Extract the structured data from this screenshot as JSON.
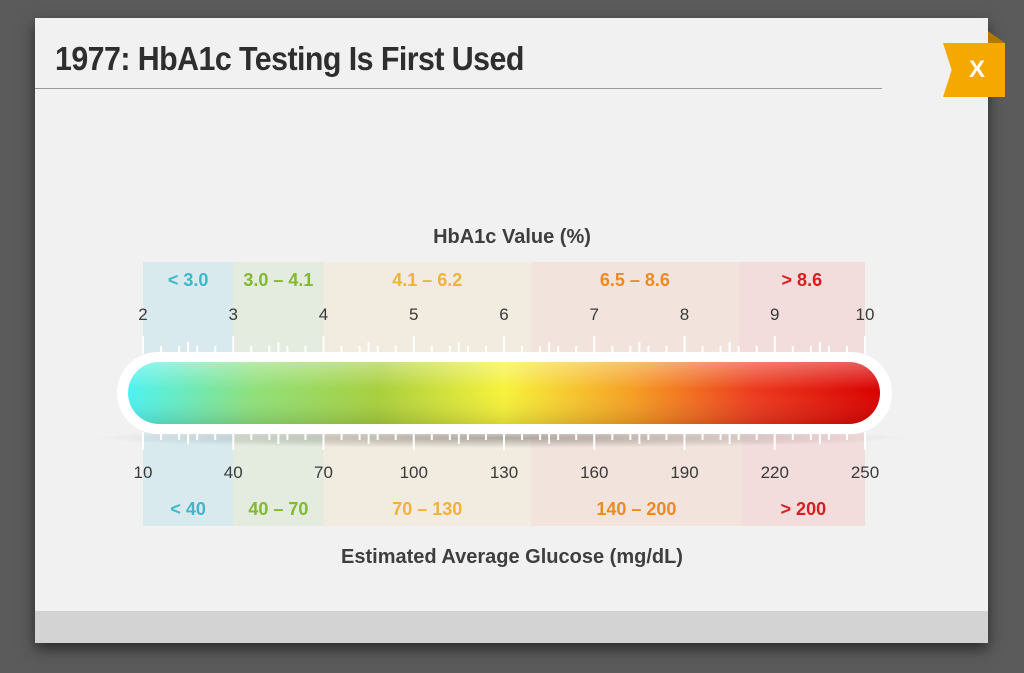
{
  "dialog": {
    "title": "1977: HbA1c Testing Is First Used",
    "close_label": "X"
  },
  "colors": {
    "accent": "#f5a800",
    "bar_gradient": [
      "#4df2f2",
      "#8fe07a",
      "#a8cf3c",
      "#f7f23a",
      "#f6a023",
      "#ec3a1d",
      "#d90000"
    ]
  },
  "chart_data": {
    "type": "bar",
    "top_axis": {
      "title": "HbA1c Value (%)",
      "range": [
        2,
        10
      ],
      "ticks": [
        "2",
        "3",
        "4",
        "5",
        "6",
        "7",
        "8",
        "9",
        "10"
      ],
      "ranges": [
        {
          "label": "< 3.0",
          "from": 2,
          "to": 3,
          "color": "#3fb7c6",
          "bg": "#d9eaee"
        },
        {
          "label": "3.0 – 4.1",
          "from": 3,
          "to": 4,
          "color": "#82b833",
          "bg": "#e3ecdf"
        },
        {
          "label": "4.1 – 6.2",
          "from": 4,
          "to": 6.3,
          "color": "#f0b23a",
          "bg": "#f2ebdf"
        },
        {
          "label": "6.5 – 8.6",
          "from": 6.3,
          "to": 8.6,
          "color": "#ee8a1e",
          "bg": "#f2e4dc"
        },
        {
          "label": "> 8.6",
          "from": 8.6,
          "to": 10,
          "color": "#d81f1f",
          "bg": "#f2dcdc"
        }
      ]
    },
    "bottom_axis": {
      "title": "Estimated Average Glucose (mg/dL)",
      "range": [
        10,
        250
      ],
      "ticks": [
        "10",
        "40",
        "70",
        "100",
        "130",
        "160",
        "190",
        "220",
        "250"
      ],
      "ranges": [
        {
          "label": "< 40",
          "from": 10,
          "to": 40,
          "color": "#3fb7c6",
          "bg": "#d9eaee"
        },
        {
          "label": "40 – 70",
          "from": 40,
          "to": 70,
          "color": "#82b833",
          "bg": "#e3ecdf"
        },
        {
          "label": "70 – 130",
          "from": 70,
          "to": 139,
          "color": "#f0b23a",
          "bg": "#f2ebdf"
        },
        {
          "label": "140 – 200",
          "from": 139,
          "to": 209,
          "color": "#ee8a1e",
          "bg": "#f2e4dc"
        },
        {
          "label": "> 200",
          "from": 209,
          "to": 250,
          "color": "#d81f1f",
          "bg": "#f2dcdc"
        }
      ]
    }
  }
}
